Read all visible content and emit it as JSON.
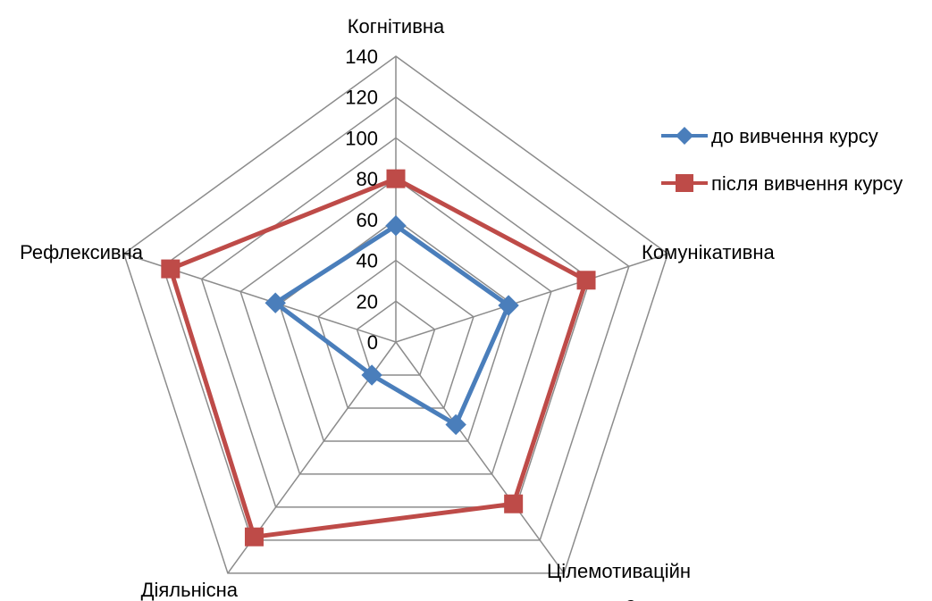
{
  "chart_data": {
    "type": "radar",
    "categories": [
      "Когнітивна",
      "Комунікативна",
      "Цілемотиваційн",
      "Діяльнісна",
      "Рефлексивна"
    ],
    "category_overflow": "а",
    "series": [
      {
        "name": "до вивчення курсу",
        "values": [
          57,
          58,
          50,
          20,
          62
        ],
        "color": "#4a7ebb",
        "marker": "diamond"
      },
      {
        "name": "після вивчення курсу",
        "values": [
          80,
          98,
          98,
          118,
          116
        ],
        "color": "#be4b48",
        "marker": "square"
      }
    ],
    "r_ticks": [
      "0",
      "20",
      "40",
      "60",
      "80",
      "100",
      "120",
      "140"
    ],
    "r_range": [
      0,
      140
    ],
    "grid": true,
    "legend_position": "right"
  }
}
